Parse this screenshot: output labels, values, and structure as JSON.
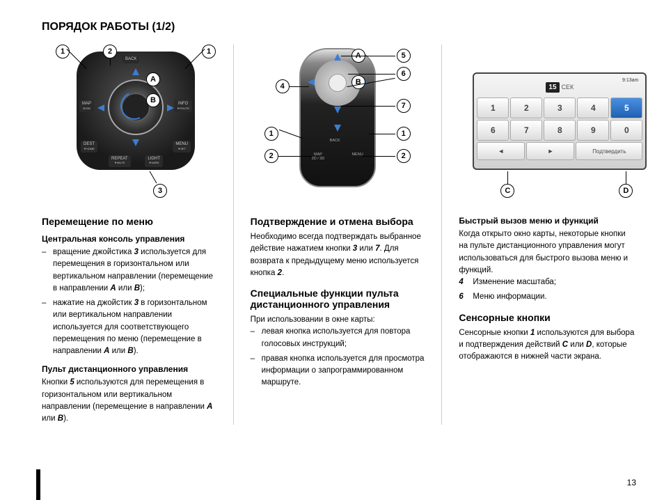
{
  "page_title": "ПОРЯДОК РАБОТЫ (1/2)",
  "page_number": "13",
  "console": {
    "buttons": {
      "back": "BACK",
      "map": "MAP",
      "map_sub": "2D/3D",
      "info": "INFO",
      "info_sub": "▼ROUTE",
      "dest": "DEST",
      "dest_sub": "▼HOME",
      "menu": "MENU",
      "menu_sub": "▼SET",
      "repeat": "REPEAT",
      "repeat_sub": "▼MUTE",
      "light": "LIGHT",
      "light_sub": "▼DARK"
    },
    "callouts": {
      "c1a": "1",
      "c1b": "1",
      "c2": "2",
      "c3": "3",
      "cA": "A",
      "cB": "B"
    }
  },
  "remote": {
    "labels": {
      "back": "BACK",
      "map": "MAP",
      "map_sub": "2D / 3D",
      "menu": "MENU"
    },
    "callouts": {
      "c1a": "1",
      "c1b": "1",
      "c2a": "2",
      "c2b": "2",
      "c4": "4",
      "c5": "5",
      "c6": "6",
      "c7": "7",
      "cA": "A",
      "cB": "B"
    }
  },
  "screen": {
    "time": "9:13am",
    "cek_num": "15",
    "cek_label": "СЕК",
    "keys_row1": [
      "1",
      "2",
      "3",
      "4",
      "5"
    ],
    "keys_row2": [
      "6",
      "7",
      "8",
      "9",
      "0"
    ],
    "active_index": 4,
    "arrow_left": "◄",
    "arrow_right": "►",
    "confirm": "Подтвердить",
    "callouts": {
      "cC": "C",
      "cD": "D"
    }
  },
  "col1": {
    "h3": "Перемещение по меню",
    "h4a": "Центральная консоль управления",
    "li1": "вращение джойстика 3 используется для перемещения в горизонтальном или вертикальном направлении (перемещение в направлении A или B);",
    "li2": "нажатие на джойстик 3 в горизонтальном или вертикальном направлении используется для соответствующего перемещения по меню (перемещение в направлении A или B).",
    "h4b": "Пульт дистанционного управления",
    "p1": "Кнопки 5 используются для перемещения в горизонтальном или вертикальном направлении (перемещение в направлении A или B)."
  },
  "col2": {
    "h3a": "Подтверждение и отмена выбора",
    "p1": "Необходимо всегда подтверждать выбранное действие нажатием кнопки 3 или 7. Для возврата к предыдущему меню используется кнопка 2.",
    "h3b": "Специальные функции пульта дистанционного управления",
    "p2": "При использовании в окне карты:",
    "li1": "левая кнопка используется для повтора голосовых инструкций;",
    "li2": "правая кнопка используется для просмотра информации о запрограммированном маршруте."
  },
  "col3": {
    "h4a": "Быстрый вызов меню и функций",
    "p1": "Когда открыто окно карты, некоторые кнопки на пульте дистанционного управления могут использоваться для быстрого вызова меню и функций.",
    "n4": "4",
    "n4_text": "Изменение масштаба;",
    "n6": "6",
    "n6_text": "Меню информации.",
    "h3": "Сенсорные кнопки",
    "p2": "Сенсорные кнопки 1 используются для выбора и подтверждения действий C или D, которые отображаются в нижней части экрана."
  }
}
